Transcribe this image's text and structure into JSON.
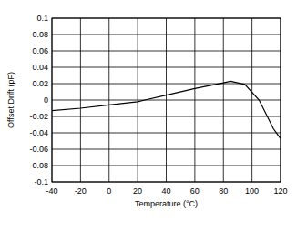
{
  "chart_data": {
    "type": "line",
    "x_label": "Temperature (°C)",
    "y_label": "Offset Drift (pF)",
    "x": [
      -40,
      -20,
      0,
      20,
      25,
      40,
      60,
      80,
      85,
      95,
      105,
      115,
      120
    ],
    "values": [
      -0.013,
      -0.01,
      -0.006,
      -0.002,
      0,
      0.006,
      0.014,
      0.021,
      0.023,
      0.019,
      0.0,
      -0.035,
      -0.047
    ],
    "color": "#000000",
    "xlim": [
      -40,
      120
    ],
    "xticks": [
      -40,
      -20,
      0,
      20,
      40,
      60,
      80,
      100,
      120
    ],
    "ylim": [
      -0.1,
      0.1
    ],
    "yticks": [
      -0.1,
      -0.08,
      -0.06,
      -0.04,
      -0.02,
      0,
      0.02,
      0.04,
      0.06,
      0.08,
      0.1
    ],
    "grid": true
  }
}
